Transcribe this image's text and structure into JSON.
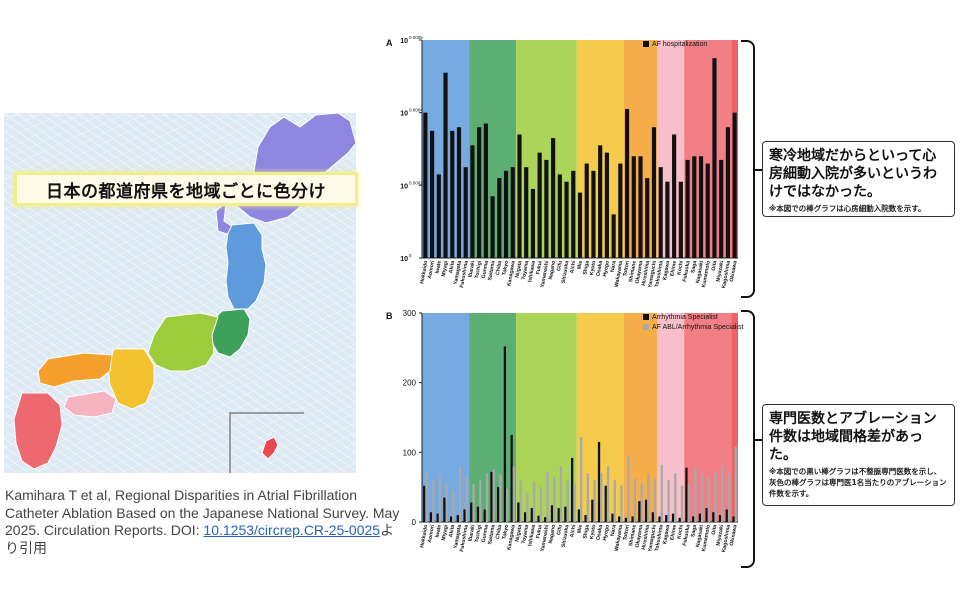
{
  "map": {
    "title": "日本の都道府県を地域ごとに色分け",
    "colors": {
      "hokkaido": "#8f86e0",
      "tohoku": "#5f9bdc",
      "kanto": "#3fa05a",
      "chubu": "#9ccc3c",
      "kinki": "#f2c22e",
      "chugoku": "#f5a02c",
      "shikoku": "#f6b4c0",
      "kyushu": "#ee6870",
      "okinawa": "#e8484e"
    }
  },
  "citation": {
    "text": "Kamihara T et al, Regional Disparities in Atrial Fibrillation Catheter Ablation Based on the Japanese National Survey. May 2025. Circulation Reports. DOI: ",
    "doi": "10.1253/circrep.CR-25-0025",
    "suffix": "より引用"
  },
  "annotations": {
    "a_main": "寒冷地域だからといって心房細動入院が多いというわけではなかった。",
    "a_note": "※本図での棒グラフは心房細動入院数を示す。",
    "b_main": "専門医数とアブレーション件数は地域間格差があった。",
    "b_note": "※本図での黒い棒グラフは不整脈専門医数を示し、灰色の棒グラフは専門医1名当たりのアブレーション件数を示す。"
  },
  "chart_data": [
    {
      "type": "bar",
      "panel_label": "A",
      "y_scale": "log",
      "ylim": [
        1,
        1.0006
      ],
      "y_ticks": [
        1,
        1.0002,
        1.0004,
        1.0006
      ],
      "y_tick_labels": [
        {
          "base": "10",
          "exp": "0"
        },
        {
          "base": "10",
          "exp": "0.0002"
        },
        {
          "base": "10",
          "exp": "0.0004"
        },
        {
          "base": "10",
          "exp": "0.0006"
        }
      ],
      "categories": [
        "Hokkaido",
        "Aomori",
        "Iwate",
        "Miyagi",
        "Akita",
        "Yamagata",
        "Fukushima",
        "Ibaraki",
        "Tochigi",
        "Gunma",
        "Saitama",
        "Chiba",
        "Tokyo",
        "Kanagawa",
        "Niigata",
        "Toyama",
        "Ishikawa",
        "Fukui",
        "Yamanashi",
        "Nagano",
        "Gifu",
        "Shizuoka",
        "Aichi",
        "Mie",
        "Shiga",
        "Kyoto",
        "Osaka",
        "Hyogo",
        "Nara",
        "Wakayama",
        "Tottori",
        "Shimane",
        "Okayama",
        "Hiroshima",
        "Yamaguchi",
        "Tokushima",
        "Kagawa",
        "Ehime",
        "Kochi",
        "Fukuoka",
        "Saga",
        "Nagasaki",
        "Kumamoto",
        "Oita",
        "Miyazaki",
        "Kagoshima",
        "Okinawa"
      ],
      "series": [
        {
          "name": "AF hospitalization",
          "color": "#111111",
          "values": [
            1.0004,
            1.00035,
            1.00023,
            1.00051,
            1.00035,
            1.00036,
            1.00025,
            1.00031,
            1.00036,
            1.00037,
            1.00017,
            1.00022,
            1.00024,
            1.00025,
            1.00034,
            1.00025,
            1.00019,
            1.00029,
            1.00027,
            1.00033,
            1.00023,
            1.00021,
            1.00024,
            1.00018,
            1.00026,
            1.00024,
            1.00031,
            1.00029,
            1.00012,
            1.00026,
            1.00041,
            1.00028,
            1.00028,
            1.00022,
            1.00036,
            1.00025,
            1.00021,
            1.00034,
            1.00021,
            1.00027,
            1.00028,
            1.00028,
            1.00026,
            1.00055,
            1.00027,
            1.00036,
            1.0004
          ]
        }
      ],
      "regions": [
        {
          "name": "Hokkaido-Tohoku",
          "from": 0,
          "to": 6,
          "color": "#5f9bdc"
        },
        {
          "name": "Kanto",
          "from": 7,
          "to": 13,
          "color": "#3fa05a"
        },
        {
          "name": "Chubu",
          "from": 14,
          "to": 22,
          "color": "#9ccc3c"
        },
        {
          "name": "Kinki",
          "from": 23,
          "to": 29,
          "color": "#f2c22e"
        },
        {
          "name": "Chugoku",
          "from": 30,
          "to": 34,
          "color": "#f5a02c"
        },
        {
          "name": "Shikoku",
          "from": 35,
          "to": 38,
          "color": "#f6b4c0"
        },
        {
          "name": "Kyushu",
          "from": 39,
          "to": 45,
          "color": "#ee6870"
        },
        {
          "name": "Okinawa",
          "from": 46,
          "to": 46,
          "color": "#e8484e"
        }
      ],
      "legend": "top-right"
    },
    {
      "type": "bar",
      "panel_label": "B",
      "ylim": [
        0,
        300
      ],
      "y_ticks": [
        0,
        100,
        200,
        300
      ],
      "categories": [
        "Hokkaido",
        "Aomori",
        "Iwate",
        "Miyagi",
        "Akita",
        "Yamagata",
        "Fukushima",
        "Ibaraki",
        "Tochigi",
        "Gunma",
        "Saitama",
        "Chiba",
        "Tokyo",
        "Kanagawa",
        "Niigata",
        "Toyama",
        "Ishikawa",
        "Fukui",
        "Yamanashi",
        "Nagano",
        "Gifu",
        "Shizuoka",
        "Aichi",
        "Mie",
        "Shiga",
        "Kyoto",
        "Osaka",
        "Hyogo",
        "Nara",
        "Wakayama",
        "Tottori",
        "Shimane",
        "Okayama",
        "Hiroshima",
        "Yamaguchi",
        "Tokushima",
        "Kagawa",
        "Ehime",
        "Kochi",
        "Fukuoka",
        "Saga",
        "Nagasaki",
        "Kumamoto",
        "Oita",
        "Miyazaki",
        "Kagoshima",
        "Okinawa"
      ],
      "series": [
        {
          "name": "Arrhythmia Specialist",
          "color": "#111111",
          "values": [
            52,
            14,
            12,
            35,
            8,
            10,
            18,
            28,
            22,
            18,
            72,
            50,
            252,
            125,
            28,
            14,
            20,
            9,
            7,
            24,
            20,
            22,
            92,
            18,
            10,
            32,
            115,
            52,
            12,
            8,
            6,
            8,
            30,
            32,
            14,
            8,
            10,
            12,
            6,
            78,
            8,
            12,
            20,
            14,
            10,
            18,
            8
          ]
        },
        {
          "name": "AF ABL/Arrhythmia Specialist",
          "color": "#a9a9a9",
          "values": [
            72,
            60,
            68,
            55,
            45,
            80,
            65,
            55,
            60,
            70,
            75,
            68,
            48,
            80,
            60,
            42,
            58,
            50,
            72,
            65,
            80,
            60,
            55,
            122,
            70,
            60,
            70,
            80,
            60,
            52,
            95,
            62,
            55,
            68,
            62,
            82,
            60,
            70,
            52,
            55,
            78,
            70,
            65,
            72,
            80,
            70,
            108
          ]
        }
      ],
      "legend": "top-right"
    }
  ]
}
